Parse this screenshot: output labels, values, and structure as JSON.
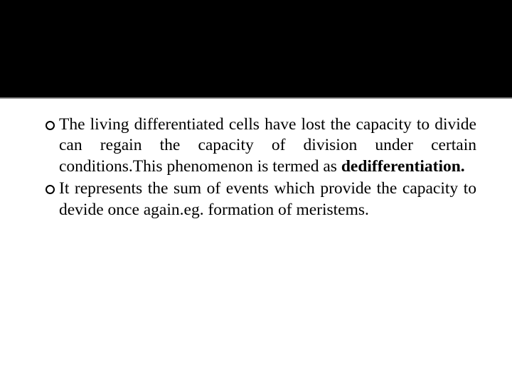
{
  "slide": {
    "header_background": "#000000",
    "body_background": "#ffffff",
    "text_color": "#000000",
    "bullet_border_color": "#000000",
    "font_size": 23.5,
    "bullets": [
      {
        "text_before_bold": "The living differentiated cells have lost the capacity to divide can regain the capacity of division under certain conditions.This phenomenon is termed as ",
        "bold_text": "dedifferentiation.",
        "text_after_bold": ""
      },
      {
        "text_before_bold": "It represents the sum of events which provide the capacity to devide once again.eg. formation of meristems.",
        "bold_text": "",
        "text_after_bold": ""
      }
    ]
  }
}
